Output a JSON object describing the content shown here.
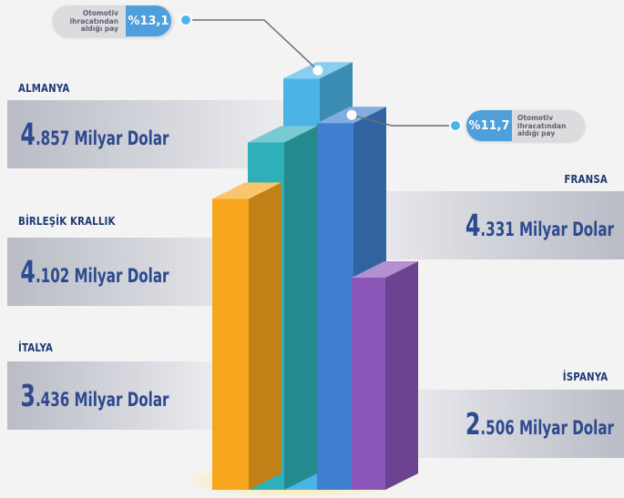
{
  "chart_data": {
    "type": "bar",
    "categories": [
      "ALMANYA",
      "FRANSA",
      "BİRLEŞİK KRALLIK",
      "İTALYA",
      "İSPANYA"
    ],
    "values": [
      4.857,
      4.331,
      4.102,
      3.436,
      2.506
    ],
    "unit": "Milyar Dolar",
    "value_labels": [
      {
        "lead": "4",
        "rest": ".857 Milyar Dolar"
      },
      {
        "lead": "4",
        "rest": ".331 Milyar Dolar"
      },
      {
        "lead": "4",
        "rest": ".102 Milyar Dolar"
      },
      {
        "lead": "3",
        "rest": ".436 Milyar Dolar"
      },
      {
        "lead": "2",
        "rest": ".506 Milyar Dolar"
      }
    ],
    "callouts": [
      {
        "country": "ALMANYA",
        "label": "Otomotiv\nihracatından\naldığı pay",
        "value": "%13,1"
      },
      {
        "country": "FRANSA",
        "label": "Otomotiv\nihracatından\naldığı pay",
        "value": "%11,7"
      }
    ],
    "bar_colors": {
      "ALMANYA": "#4bb3e6",
      "FRANSA": "#3f7fcf",
      "BİRLEŞİK KRALLIK": "#2fb0b8",
      "İTALYA": "#f7a51d",
      "İSPANYA": "#8a56b8"
    }
  }
}
